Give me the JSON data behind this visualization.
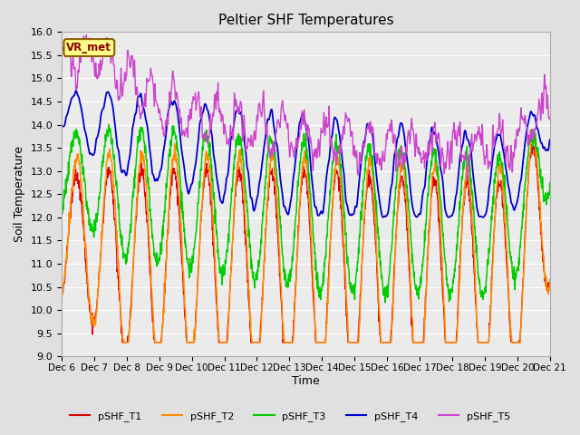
{
  "title": "Peltier SHF Temperatures",
  "xlabel": "Time",
  "ylabel": "Soil Temperature",
  "ylim": [
    9.0,
    16.0
  ],
  "yticks": [
    9.0,
    9.5,
    10.0,
    10.5,
    11.0,
    11.5,
    12.0,
    12.5,
    13.0,
    13.5,
    14.0,
    14.5,
    15.0,
    15.5,
    16.0
  ],
  "xtick_labels": [
    "Dec 6",
    "Dec 7",
    "Dec 8",
    "Dec 9",
    "Dec 10",
    "Dec 11",
    "Dec 12",
    "Dec 13",
    "Dec 14",
    "Dec 15",
    "Dec 16",
    "Dec 17",
    "Dec 18",
    "Dec 19",
    "Dec 20",
    "Dec 21"
  ],
  "series_colors": [
    "#dd0000",
    "#ff8c00",
    "#00cc00",
    "#0000cc",
    "#cc44cc"
  ],
  "series_labels": [
    "pSHF_T1",
    "pSHF_T2",
    "pSHF_T3",
    "pSHF_T4",
    "pSHF_T5"
  ],
  "legend_label": "VR_met",
  "legend_text_color": "#8b0000",
  "bg_color": "#e0e0e0",
  "plot_bg_color": "#ebebeb",
  "n_days": 15,
  "pts_per_day": 96
}
